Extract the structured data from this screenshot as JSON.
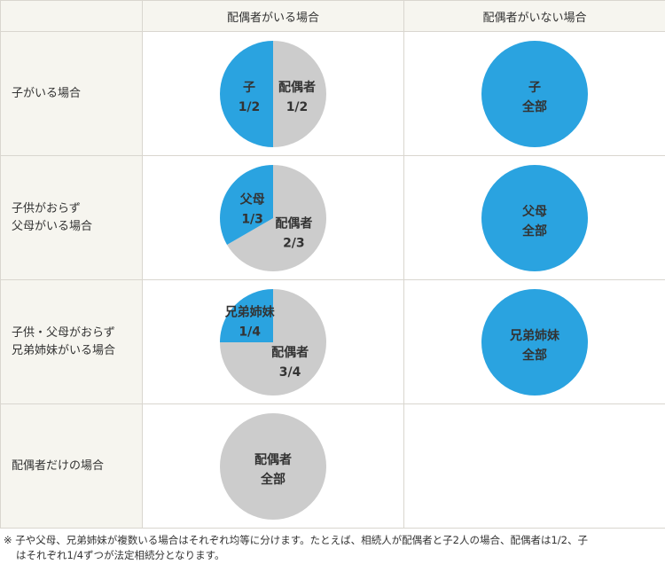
{
  "header": {
    "corner": "",
    "col_with_spouse": "配偶者がいる場合",
    "col_without_spouse": "配偶者がいない場合"
  },
  "colors": {
    "heir": "#2aa3e0",
    "spouse": "#cccccc",
    "label_bg": "#f6f5ef",
    "border": "#d9d6cf"
  },
  "rows": [
    {
      "label_lines": [
        "子がいる場合"
      ]
    },
    {
      "label_lines": [
        "子供がおらず",
        "父母がいる場合"
      ]
    },
    {
      "label_lines": [
        "子供・父母がおらず",
        "兄弟姉妹がいる場合"
      ]
    },
    {
      "label_lines": [
        "配偶者だけの場合"
      ]
    }
  ],
  "chart_data": [
    {
      "type": "pie",
      "row": "子がいる場合",
      "column": "配偶者がいる場合",
      "slices": [
        {
          "label": "子",
          "share": "1/2",
          "value": 0.5,
          "color": "#2aa3e0"
        },
        {
          "label": "配偶者",
          "share": "1/2",
          "value": 0.5,
          "color": "#cccccc"
        }
      ]
    },
    {
      "type": "pie",
      "row": "子がいる場合",
      "column": "配偶者がいない場合",
      "slices": [
        {
          "label": "子",
          "share": "全部",
          "value": 1,
          "color": "#2aa3e0"
        }
      ]
    },
    {
      "type": "pie",
      "row": "子供がおらず父母がいる場合",
      "column": "配偶者がいる場合",
      "slices": [
        {
          "label": "父母",
          "share": "1/3",
          "value": 0.3333,
          "color": "#2aa3e0"
        },
        {
          "label": "配偶者",
          "share": "2/3",
          "value": 0.6667,
          "color": "#cccccc"
        }
      ]
    },
    {
      "type": "pie",
      "row": "子供がおらず父母がいる場合",
      "column": "配偶者がいない場合",
      "slices": [
        {
          "label": "父母",
          "share": "全部",
          "value": 1,
          "color": "#2aa3e0"
        }
      ]
    },
    {
      "type": "pie",
      "row": "子供・父母がおらず兄弟姉妹がいる場合",
      "column": "配偶者がいる場合",
      "slices": [
        {
          "label": "兄弟姉妹",
          "share": "1/4",
          "value": 0.25,
          "color": "#2aa3e0"
        },
        {
          "label": "配偶者",
          "share": "3/4",
          "value": 0.75,
          "color": "#cccccc"
        }
      ]
    },
    {
      "type": "pie",
      "row": "子供・父母がおらず兄弟姉妹がいる場合",
      "column": "配偶者がいない場合",
      "slices": [
        {
          "label": "兄弟姉妹",
          "share": "全部",
          "value": 1,
          "color": "#2aa3e0"
        }
      ]
    },
    {
      "type": "pie",
      "row": "配偶者だけの場合",
      "column": "配偶者がいる場合",
      "slices": [
        {
          "label": "配偶者",
          "share": "全部",
          "value": 1,
          "color": "#cccccc"
        }
      ]
    }
  ],
  "footnote": {
    "mark": "※",
    "line1": "子や父母、兄弟姉妹が複数いる場合はそれぞれ均等に分けます。たとえば、相続人が配偶者と子2人の場合、配偶者は1/2、子",
    "line2": "はそれぞれ1/4ずつが法定相続分となります。"
  }
}
